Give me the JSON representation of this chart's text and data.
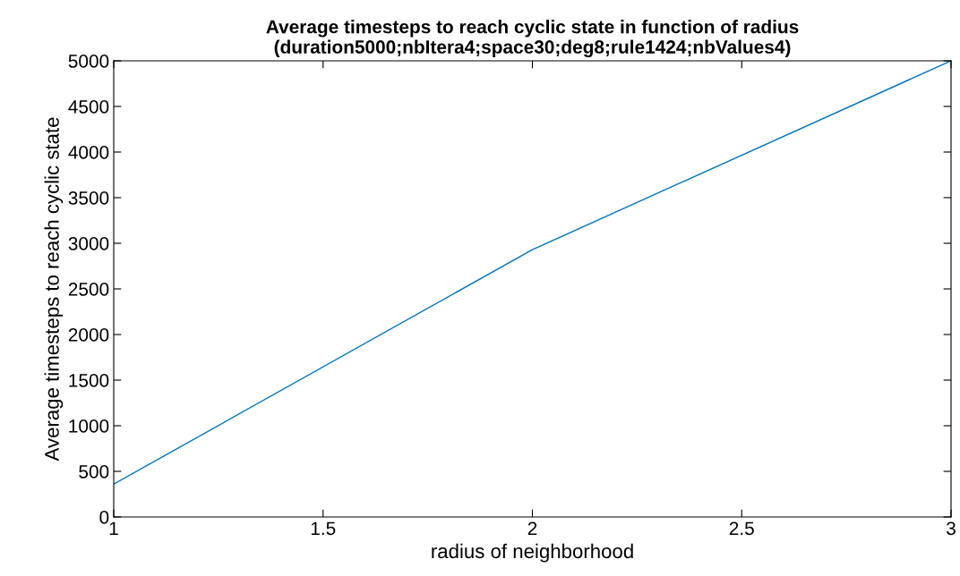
{
  "chart_data": {
    "type": "line",
    "title": "Average timesteps to reach cyclic state in function of radius\n(duration5000;nbItera4;space30;deg8;rule1424;nbValues4)",
    "xlabel": "radius of neighborhood",
    "ylabel": "Average timesteps to reach cyclic state",
    "x": [
      1,
      2,
      3
    ],
    "series": [
      {
        "color": "#0072bd",
        "values": [
          360,
          2930,
          5000
        ]
      }
    ],
    "xlim": [
      1,
      3
    ],
    "xticks": [
      1,
      1.5,
      2,
      2.5,
      3
    ],
    "ylim": [
      0,
      5000
    ],
    "yticks": [
      0,
      500,
      1000,
      1500,
      2000,
      2500,
      3000,
      3500,
      4000,
      4500,
      5000
    ],
    "grid": false,
    "legend": false,
    "marker": "none",
    "line_style": "solid"
  }
}
